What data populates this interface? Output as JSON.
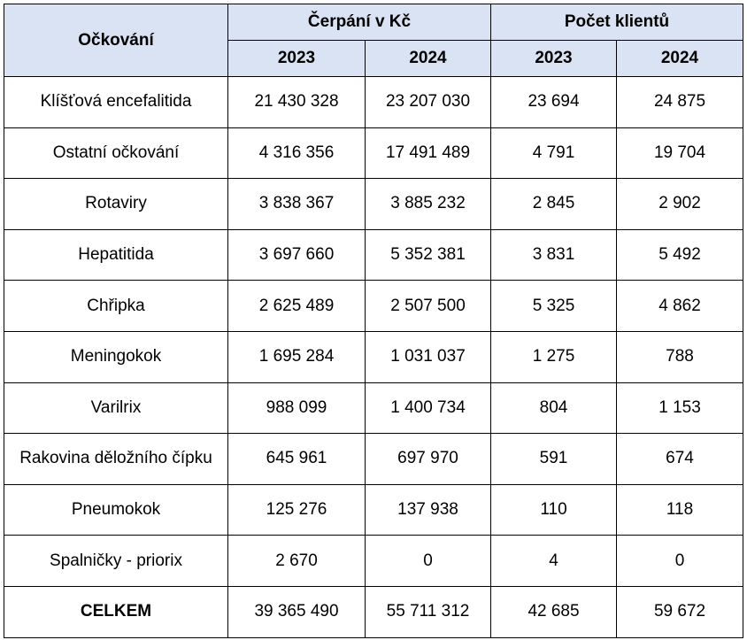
{
  "table": {
    "header": {
      "row_label": "Očkování",
      "group_spending": "Čerpání v Kč",
      "group_clients": "Počet klientů",
      "years": [
        "2023",
        "2024",
        "2023",
        "2024"
      ]
    },
    "rows": [
      {
        "label": "Klíšťová encefalitida",
        "values": [
          "21 430 328",
          "23 207 030",
          "23 694",
          "24 875"
        ]
      },
      {
        "label": "Ostatní očkování",
        "values": [
          "4 316 356",
          "17 491 489",
          "4 791",
          "19 704"
        ]
      },
      {
        "label": "Rotaviry",
        "values": [
          "3 838 367",
          "3 885 232",
          "2 845",
          "2 902"
        ]
      },
      {
        "label": "Hepatitida",
        "values": [
          "3 697 660",
          "5 352 381",
          "3 831",
          "5 492"
        ]
      },
      {
        "label": "Chřipka",
        "values": [
          "2 625 489",
          "2 507 500",
          "5 325",
          "4 862"
        ]
      },
      {
        "label": "Meningokok",
        "values": [
          "1 695 284",
          "1 031 037",
          "1 275",
          "788"
        ]
      },
      {
        "label": "Varilrix",
        "values": [
          "988 099",
          "1 400 734",
          "804",
          "1 153"
        ]
      },
      {
        "label": "Rakovina děložního čípku",
        "values": [
          "645 961",
          "697 970",
          "591",
          "674"
        ]
      },
      {
        "label": "Pneumokok",
        "values": [
          "125 276",
          "137 938",
          "110",
          "118"
        ]
      },
      {
        "label": "Spalničky - priorix",
        "values": [
          "2 670",
          "0",
          "4",
          "0"
        ]
      }
    ],
    "total": {
      "label": "CELKEM",
      "values": [
        "39 365 490",
        "55 711 312",
        "42 685",
        "59 672"
      ]
    }
  },
  "colors": {
    "header_background": "#dae3f3",
    "border": "#000000"
  }
}
